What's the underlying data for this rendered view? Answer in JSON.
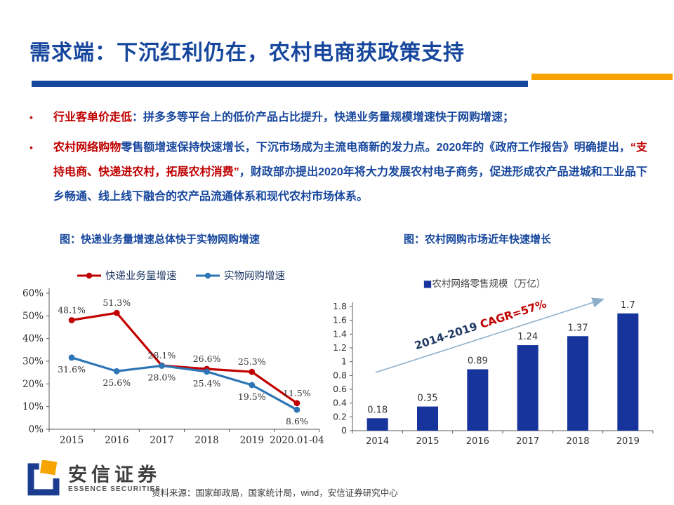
{
  "slide": {
    "title": "需求端：下沉红利仍在，农村电商获政策支持",
    "accent": {
      "navy": "#17479D",
      "orange": "#F7A400",
      "red": "#C00000"
    }
  },
  "bullets": [
    {
      "segments": [
        {
          "text": "行业客单价走低",
          "style": "red"
        },
        {
          "text": "：拼多多等平台上的低价产品占比提升，快递业务量规模增速快于网购增速；",
          "style": "blue"
        }
      ]
    },
    {
      "segments": [
        {
          "text": "农村网络购物",
          "style": "red"
        },
        {
          "text": "零售额增速保持快速增长，下沉市场成为主流电商新的发力点。2020年的《政府工作报告》明确提出，",
          "style": "blue"
        },
        {
          "text": "“支持电商、快递进农村，拓展农村消费”",
          "style": "red"
        },
        {
          "text": "，财政部亦提出2020年将大力发展农村电子商务，促进形成农产品进城和工业品下乡畅通、线上线下融合的农产品流通体系和现代农村市场体系。",
          "style": "blue"
        }
      ]
    }
  ],
  "chart_data": [
    {
      "type": "line",
      "title": "图：快递业务量增速总体快于实物网购增速",
      "categories": [
        "2015",
        "2016",
        "2017",
        "2018",
        "2019",
        "2020.01-04"
      ],
      "series": [
        {
          "name": "快递业务量增速",
          "color": "#C00000",
          "values": [
            48.1,
            51.3,
            28.1,
            26.6,
            25.3,
            11.5
          ],
          "labels": [
            "48.1%",
            "51.3%",
            "28.1%",
            "26.6%",
            "25.3%",
            "11.5%"
          ],
          "label_side": "above"
        },
        {
          "name": "实物网购增速",
          "color": "#2E75B6",
          "values": [
            31.6,
            25.6,
            28.0,
            25.4,
            19.5,
            8.6
          ],
          "labels": [
            "31.6%",
            "25.6%",
            "28.0%",
            "25.4%",
            "19.5%",
            "8.6%"
          ],
          "label_side": "below"
        }
      ],
      "ylim": [
        0,
        60
      ],
      "ytick_step": 10,
      "ytick_labels": [
        "0%",
        "10%",
        "20%",
        "30%",
        "40%",
        "50%",
        "60%"
      ],
      "grid": false,
      "legend_position": "top"
    },
    {
      "type": "bar",
      "title": "图：农村网购市场近年快速增长",
      "legend": "农村网络零售规模（万亿）",
      "categories": [
        "2014",
        "2015",
        "2016",
        "2017",
        "2018",
        "2019"
      ],
      "values": [
        0.18,
        0.35,
        0.89,
        1.24,
        1.37,
        1.7
      ],
      "labels": [
        "0.18",
        "0.35",
        "0.89",
        "1.24",
        "1.37",
        "1.7"
      ],
      "bar_color": "#17349C",
      "ylim": [
        0,
        1.8
      ],
      "ytick_step": 0.2,
      "grid": false,
      "legend_position": "top",
      "annotation": {
        "range_text": "2014-2019 ",
        "cagr_text": "CAGR=57%",
        "range_color": "#1F3864",
        "cagr_color": "#C00000",
        "arrow_color": "#8FAFC9"
      }
    }
  ],
  "footer": {
    "logo_cn": "安信证券",
    "logo_en": "ESSENCE SECURITIES",
    "source": "资料来源：国家邮政局，国家统计局，wind，安信证券研究中心"
  }
}
